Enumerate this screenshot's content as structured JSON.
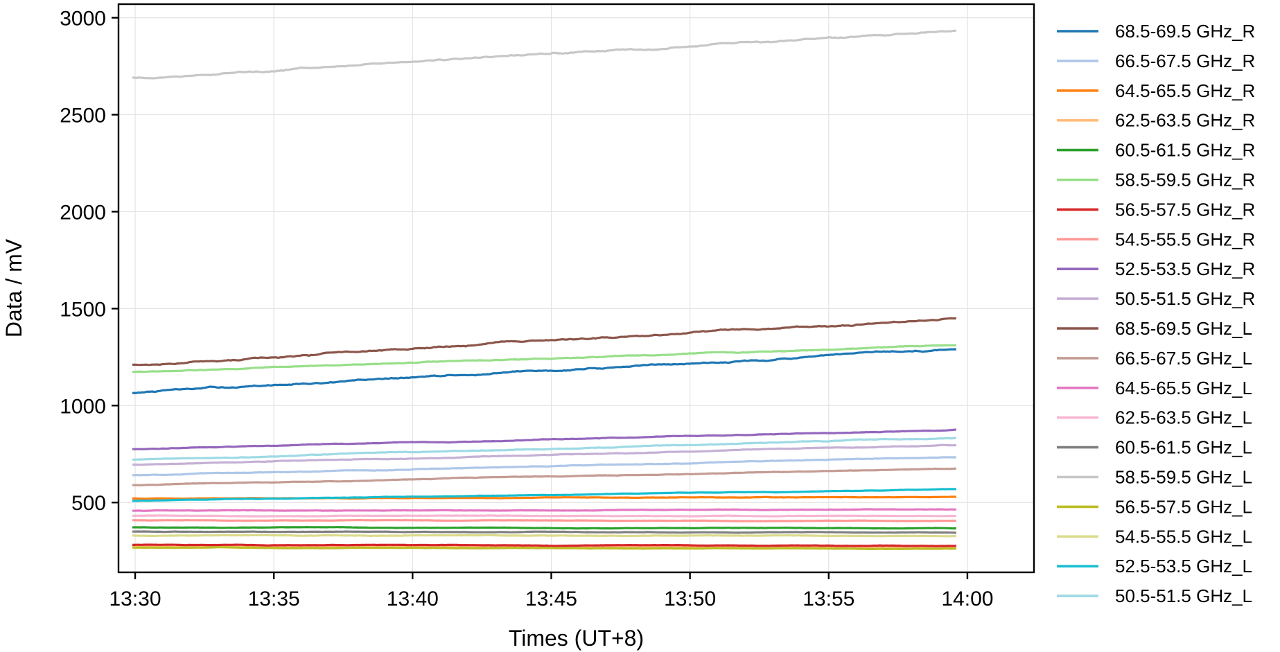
{
  "chart_data": {
    "type": "line",
    "xlabel": "Times (UT+8)",
    "ylabel": "Data / mV",
    "x_ticks": [
      "13:30",
      "13:35",
      "13:40",
      "13:45",
      "13:50",
      "13:55",
      "14:00"
    ],
    "x_tick_values": [
      0,
      5,
      10,
      15,
      20,
      25,
      30
    ],
    "y_ticks": [
      500,
      1000,
      1500,
      2000,
      2500,
      3000
    ],
    "xlim_minutes_after_1330": [
      -0.6,
      32.4
    ],
    "ylim": [
      140,
      3070
    ],
    "x_start_minutes_after_1330": -0.1,
    "x_end_minutes_after_1330": 29.6,
    "grid": true,
    "legend_position": "right, outside plot",
    "series": [
      {
        "name": "68.5-69.5 GHz_R",
        "color": "#1f77b4",
        "start": 1065,
        "end": 1290
      },
      {
        "name": "66.5-67.5 GHz_R",
        "color": "#aec7e8",
        "start": 640,
        "end": 735
      },
      {
        "name": "64.5-65.5 GHz_R",
        "color": "#ff7f0e",
        "start": 520,
        "end": 528
      },
      {
        "name": "62.5-63.5 GHz_R",
        "color": "#ffbb78",
        "start": 272,
        "end": 270
      },
      {
        "name": "60.5-61.5 GHz_R",
        "color": "#2ca02c",
        "start": 372,
        "end": 367
      },
      {
        "name": "58.5-59.5 GHz_R",
        "color": "#98df8a",
        "start": 1175,
        "end": 1310
      },
      {
        "name": "56.5-57.5 GHz_R",
        "color": "#d62728",
        "start": 282,
        "end": 277
      },
      {
        "name": "54.5-55.5 GHz_R",
        "color": "#ff9896",
        "start": 408,
        "end": 405
      },
      {
        "name": "52.5-53.5 GHz_R",
        "color": "#9467bd",
        "start": 775,
        "end": 875
      },
      {
        "name": "50.5-51.5 GHz_R",
        "color": "#c5b0d5",
        "start": 695,
        "end": 795
      },
      {
        "name": "68.5-69.5 GHz_L",
        "color": "#8c564b",
        "start": 1212,
        "end": 1452
      },
      {
        "name": "66.5-67.5 GHz_L",
        "color": "#c49c94",
        "start": 590,
        "end": 675
      },
      {
        "name": "64.5-65.5 GHz_L",
        "color": "#e377c2",
        "start": 458,
        "end": 463
      },
      {
        "name": "62.5-63.5 GHz_L",
        "color": "#f7b6d2",
        "start": 432,
        "end": 432
      },
      {
        "name": "60.5-61.5 GHz_L",
        "color": "#7f7f7f",
        "start": 350,
        "end": 345
      },
      {
        "name": "58.5-59.5 GHz_L",
        "color": "#c7c7c7",
        "start": 2690,
        "end": 2930
      },
      {
        "name": "56.5-57.5 GHz_L",
        "color": "#bcbd22",
        "start": 268,
        "end": 262
      },
      {
        "name": "54.5-55.5 GHz_L",
        "color": "#dbdb8d",
        "start": 330,
        "end": 328
      },
      {
        "name": "52.5-53.5 GHz_L",
        "color": "#17becf",
        "start": 510,
        "end": 568
      },
      {
        "name": "50.5-51.5 GHz_L",
        "color": "#9edae5",
        "start": 720,
        "end": 835
      }
    ]
  }
}
